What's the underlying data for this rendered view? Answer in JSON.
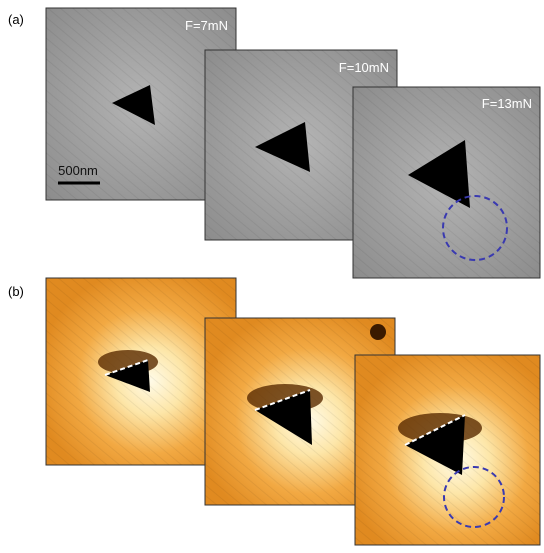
{
  "panel_a": {
    "label": "(a)",
    "images": [
      {
        "force": "F=7mN",
        "scale_bar": "500nm"
      },
      {
        "force": "F=10mN"
      },
      {
        "force": "F=13mN"
      }
    ]
  },
  "panel_b": {
    "label": "(b)"
  }
}
